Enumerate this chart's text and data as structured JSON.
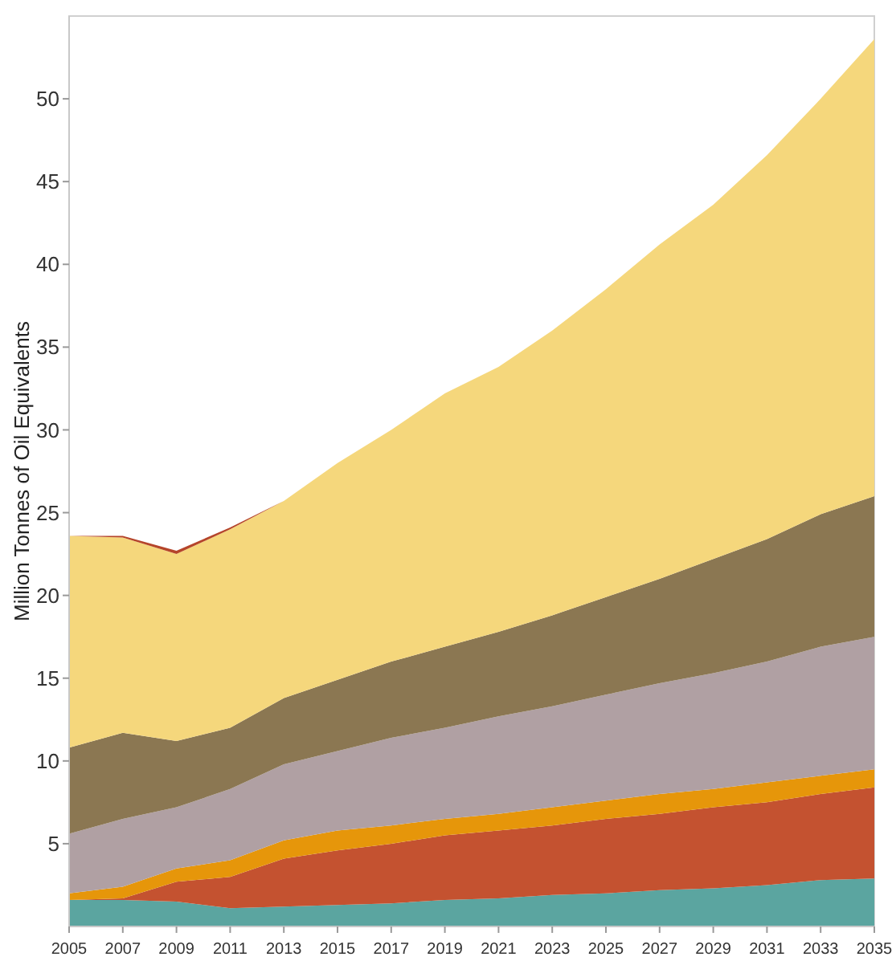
{
  "chart_data": {
    "type": "area",
    "stacked": true,
    "ylabel": "Million Tonnes of Oil Equivalents",
    "x": [
      2005,
      2007,
      2009,
      2011,
      2013,
      2015,
      2017,
      2019,
      2021,
      2023,
      2025,
      2027,
      2029,
      2031,
      2033,
      2035
    ],
    "xlim": [
      2005,
      2035
    ],
    "xticks": [
      2005,
      2007,
      2009,
      2011,
      2013,
      2015,
      2017,
      2019,
      2021,
      2023,
      2025,
      2027,
      2029,
      2031,
      2033,
      2035
    ],
    "ylim": [
      0,
      55
    ],
    "yticks": [
      5,
      10,
      15,
      20,
      25,
      30,
      35,
      40,
      45,
      50
    ],
    "grid": false,
    "series": [
      {
        "color": "#5ba5a0",
        "values": [
          1.6,
          1.6,
          1.5,
          1.1,
          1.2,
          1.3,
          1.4,
          1.6,
          1.7,
          1.9,
          2.0,
          2.2,
          2.3,
          2.5,
          2.8,
          2.9
        ]
      },
      {
        "color": "#c45230",
        "values": [
          0,
          0.1,
          1.2,
          1.9,
          2.9,
          3.3,
          3.6,
          3.9,
          4.1,
          4.2,
          4.5,
          4.6,
          4.9,
          5.0,
          5.2,
          5.5
        ]
      },
      {
        "color": "#e6960a",
        "values": [
          0.4,
          0.7,
          0.8,
          1.0,
          1.1,
          1.2,
          1.1,
          1.0,
          1.0,
          1.1,
          1.1,
          1.2,
          1.1,
          1.2,
          1.1,
          1.1
        ]
      },
      {
        "color": "#b0a0a3",
        "values": [
          3.6,
          4.1,
          3.7,
          4.3,
          4.6,
          4.8,
          5.3,
          5.5,
          5.9,
          6.1,
          6.4,
          6.7,
          7.0,
          7.3,
          7.8,
          8.0
        ]
      },
      {
        "color": "#8b7752",
        "values": [
          5.2,
          5.2,
          4.0,
          3.7,
          4.0,
          4.3,
          4.6,
          4.9,
          5.1,
          5.5,
          5.9,
          6.3,
          6.9,
          7.4,
          8.0,
          8.5
        ]
      },
      {
        "color": "#f5d77c",
        "values": [
          12.8,
          11.8,
          11.3,
          12.0,
          11.9,
          13.1,
          14.0,
          15.3,
          16.0,
          17.2,
          18.6,
          20.2,
          21.4,
          23.2,
          25.1,
          27.6
        ]
      },
      {
        "color": "#b5452a",
        "values": [
          0,
          0.1,
          0.2,
          0.1,
          0,
          0,
          0,
          0,
          0,
          0,
          0,
          0,
          0,
          0,
          0,
          0
        ]
      }
    ]
  }
}
